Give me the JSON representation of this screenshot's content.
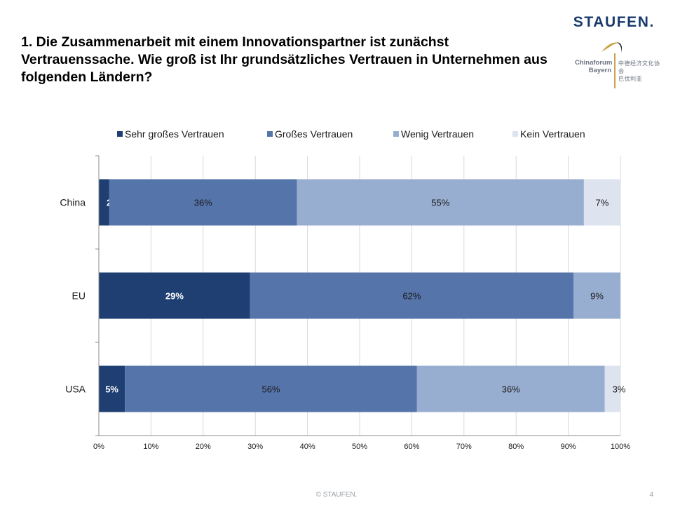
{
  "header": {
    "title": "1. Die Zusammenarbeit mit einem Innovationspartner ist zunächst Vertrauenssache. Wie groß ist Ihr grundsätzliches Vertrauen in Unternehmen aus folgenden Ländern?",
    "brand": "STAUFEN.",
    "partner_logo_line1": "Chinaforum",
    "partner_logo_line2": "Bayern",
    "partner_logo_cn1": "中德经济文化协会",
    "partner_logo_cn2": "巴伐利亚"
  },
  "footer": {
    "copyright": "© STAUFEN.",
    "page_number": "4"
  },
  "colors": {
    "sehr_gross": "#1f3f73",
    "gross": "#5574aa",
    "wenig": "#98aed0",
    "kein": "#dde3ef",
    "grid": "#d9d9d9",
    "axis": "#8c8c8c"
  },
  "chart_data": {
    "type": "bar",
    "orientation": "horizontal",
    "stacked": true,
    "percent_stacked": true,
    "categories": [
      "China",
      "EU",
      "USA"
    ],
    "series": [
      {
        "name": "Sehr großes Vertrauen",
        "values": [
          2,
          29,
          5
        ],
        "labels": [
          "2%",
          "29%",
          "5%"
        ],
        "label_color": "#ffffff",
        "label_bold": true
      },
      {
        "name": "Großes Vertrauen",
        "values": [
          36,
          62,
          56
        ],
        "labels": [
          "36%",
          "62%",
          "56%"
        ],
        "label_color": "#1a1a1a",
        "label_bold": false
      },
      {
        "name": "Wenig Vertrauen",
        "values": [
          55,
          9,
          36
        ],
        "labels": [
          "55%",
          "9%",
          "36%"
        ],
        "label_color": "#1a1a1a",
        "label_bold": false
      },
      {
        "name": "Kein Vertrauen",
        "values": [
          7,
          0,
          3
        ],
        "labels": [
          "7%",
          "",
          "3%"
        ],
        "label_color": "#1a1a1a",
        "label_bold": false
      }
    ],
    "xlim": [
      0,
      100
    ],
    "xticks": [
      0,
      10,
      20,
      30,
      40,
      50,
      60,
      70,
      80,
      90,
      100
    ],
    "xtick_labels": [
      "0%",
      "10%",
      "20%",
      "30%",
      "40%",
      "50%",
      "60%",
      "70%",
      "80%",
      "90%",
      "100%"
    ],
    "grid": true,
    "legend_position": "top",
    "title": "",
    "xlabel": "",
    "ylabel": ""
  }
}
